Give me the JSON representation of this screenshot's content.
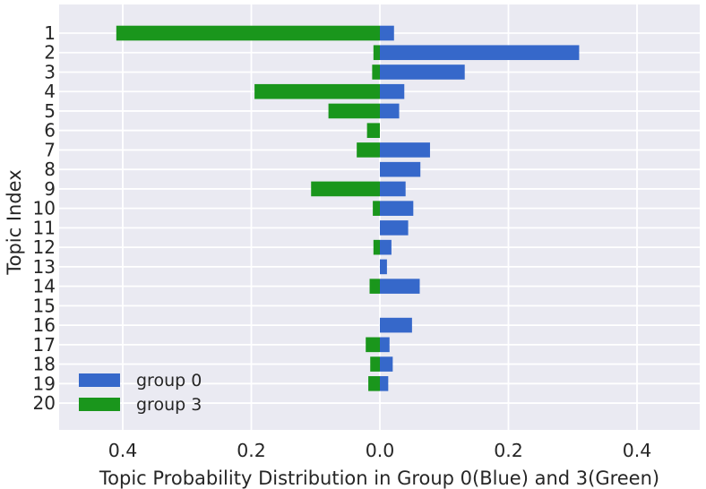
{
  "chart_data": {
    "type": "bar",
    "orientation": "horizontal-diverging",
    "title": "",
    "xlabel": "Topic Probability Distribution in Group 0(Blue) and 3(Green)",
    "ylabel": "Topic Index",
    "categories": [
      "1",
      "2",
      "3",
      "4",
      "5",
      "6",
      "7",
      "8",
      "9",
      "10",
      "11",
      "12",
      "13",
      "14",
      "15",
      "16",
      "17",
      "18",
      "19",
      "20"
    ],
    "series": [
      {
        "name": "group 0",
        "color": "#3668ca",
        "direction": "right",
        "values": [
          0.022,
          0.31,
          0.132,
          0.038,
          0.03,
          0,
          0.078,
          0.063,
          0.04,
          0.052,
          0.044,
          0.018,
          0.011,
          0.062,
          0,
          0.05,
          0.015,
          0.02,
          0.013,
          0
        ]
      },
      {
        "name": "group 3",
        "color": "#1a961c",
        "direction": "left",
        "values": [
          0.41,
          0.01,
          0.012,
          0.195,
          0.08,
          0.02,
          0.036,
          0,
          0.107,
          0.011,
          0,
          0.01,
          0,
          0.016,
          0,
          0,
          0.022,
          0.015,
          0.018,
          0
        ]
      }
    ],
    "x_ticks": [
      {
        "value": -0.4,
        "label": "0.4"
      },
      {
        "value": -0.2,
        "label": "0.2"
      },
      {
        "value": 0.0,
        "label": "0.0"
      },
      {
        "value": 0.2,
        "label": "0.2"
      },
      {
        "value": 0.4,
        "label": "0.4"
      }
    ],
    "xlim": [
      -0.5,
      0.5
    ],
    "grid": true,
    "legend_position": "lower-left",
    "colors": {
      "plot_background": "#eaeaf2",
      "grid_line": "#ffffff",
      "text": "#262626",
      "figure_background": "#ffffff"
    }
  }
}
